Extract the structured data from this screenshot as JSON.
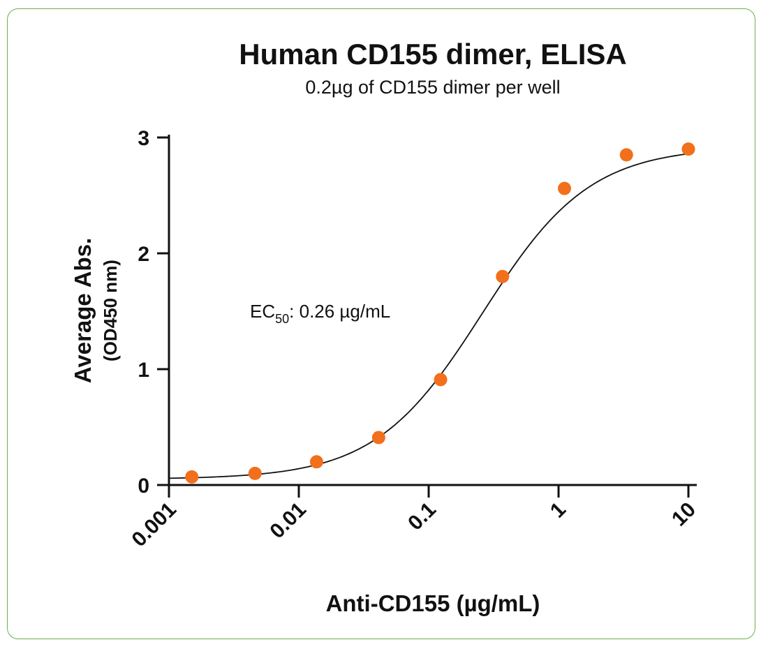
{
  "chart_data": {
    "type": "scatter",
    "title": "Human CD155 dimer, ELISA",
    "subtitle": "0.2µg of CD155 dimer per well",
    "xlabel": "Anti-CD155  (µg/mL)",
    "ylabel": "Average Abs.",
    "ylabel_secondary": "(OD450 nm)",
    "x_scale": "log",
    "xlim": [
      0.001,
      10
    ],
    "ylim": [
      0,
      3
    ],
    "x_ticks": [
      "0.001",
      "0.01",
      "0.1",
      "1",
      "10"
    ],
    "y_ticks": [
      "0",
      "1",
      "2",
      "3"
    ],
    "grid": false,
    "legend": "none",
    "annotation": {
      "prefix": "EC",
      "subscript": "50",
      "suffix": ": 0.26 µg/mL"
    },
    "marker_color": "#f26f1c",
    "series": [
      {
        "x": [
          0.0015,
          0.0046,
          0.0137,
          0.0412,
          0.1235,
          0.3704,
          1.111,
          3.333,
          10
        ],
        "y": [
          0.07,
          0.1,
          0.2,
          0.41,
          0.91,
          1.8,
          2.56,
          2.85,
          2.9
        ]
      }
    ],
    "fit_curve": {
      "model": "4PL",
      "bottom": 0.05,
      "top": 2.92,
      "ec50": 0.26,
      "hill": 1.05
    }
  }
}
